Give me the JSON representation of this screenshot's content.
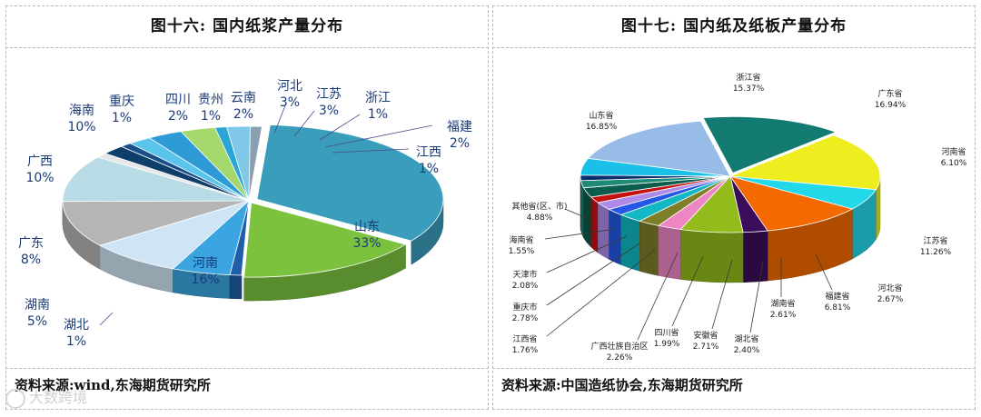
{
  "watermark": "大数跨境",
  "charts": [
    {
      "title": "图十六:  国内纸浆产量分布",
      "source": "资料来源:wind,东海期货研究所",
      "chart_data": {
        "type": "pie",
        "categories": [
          "山东",
          "河南",
          "湖北",
          "湖南",
          "广东",
          "广西",
          "海南",
          "重庆",
          "四川",
          "贵州",
          "云南",
          "河北",
          "江苏",
          "浙江",
          "福建",
          "江西"
        ],
        "values": [
          33,
          16,
          1,
          5,
          8,
          10,
          10,
          1,
          2,
          1,
          2,
          3,
          3,
          1,
          2,
          1
        ],
        "labels": [
          "33%",
          "16%",
          "1%",
          "5%",
          "8%",
          "10%",
          "10%",
          "1%",
          "2%",
          "1%",
          "2%",
          "3%",
          "3%",
          "1%",
          "2%",
          "1%"
        ],
        "colors": [
          "#3a9dbb",
          "#7cc23f",
          "#1f5ea8",
          "#3aa5e0",
          "#cfe5f5",
          "#b5b5b5",
          "#b8dbe6",
          "#e6e6e6",
          "#0e3e6a",
          "#1a4f8a",
          "#5bc4ec",
          "#2e9bd6",
          "#a4d86c",
          "#2aa6d6",
          "#7fc8e8",
          "#8aa0b0"
        ]
      }
    },
    {
      "title": "图十七:  国内纸及纸板产量分布",
      "source": "资料来源:中国造纸协会,东海期货研究所",
      "chart_data": {
        "type": "pie",
        "categories": [
          "浙江省",
          "广东省",
          "河南省",
          "江苏省",
          "河北省",
          "福建省",
          "湖南省",
          "湖北省",
          "安徽省",
          "四川省",
          "广西壮族自治区",
          "江西省",
          "重庆市",
          "天津市",
          "海南省",
          "其他省(区、市)",
          "山东省"
        ],
        "values": [
          15.37,
          16.94,
          6.1,
          11.26,
          2.67,
          6.81,
          2.61,
          2.4,
          2.71,
          1.99,
          2.26,
          1.76,
          2.78,
          2.08,
          1.55,
          4.88,
          16.85
        ],
        "labels": [
          "15.37%",
          "16.94%",
          "6.10%",
          "11.26%",
          "2.67%",
          "6.81%",
          "2.61%",
          "2.40%",
          "2.71%",
          "1.99%",
          "2.26%",
          "1.76%",
          "2.78%",
          "2.08%",
          "1.55%",
          "4.88%",
          "16.85%"
        ],
        "colors": [
          "#127a70",
          "#eded20",
          "#23d8e8",
          "#f56a00",
          "#3b0c5a",
          "#93bb1c",
          "#ef86c4",
          "#7f7f2a",
          "#12b9c4",
          "#2457e6",
          "#b08ae8",
          "#c71212",
          "#0a5c4c",
          "#1f8a76",
          "#0a2e6e",
          "#1ac0e8",
          "#98bce8"
        ]
      }
    }
  ]
}
